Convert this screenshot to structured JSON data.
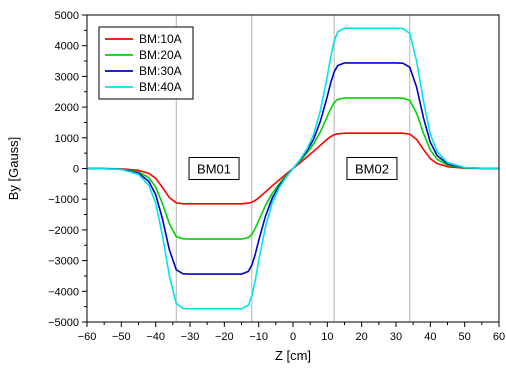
{
  "chart_data": {
    "type": "line",
    "xlabel": "Z [cm]",
    "ylabel": "By [Gauss]",
    "xlim": [
      -60,
      60
    ],
    "ylim": [
      -5000,
      5000
    ],
    "x_ticks": [
      -60,
      -50,
      -40,
      -30,
      -20,
      -10,
      0,
      10,
      20,
      30,
      40,
      50,
      60
    ],
    "y_ticks": [
      -5000,
      -4000,
      -3000,
      -2000,
      -1000,
      0,
      1000,
      2000,
      3000,
      4000,
      5000
    ],
    "x_tick_labels": [
      "−60",
      "−50",
      "−40",
      "−30",
      "−20",
      "−10",
      "0",
      "10",
      "20",
      "30",
      "40",
      "50",
      "60"
    ],
    "y_tick_labels": [
      "−5000",
      "−4000",
      "−3000",
      "−2000",
      "−1000",
      "0",
      "1000",
      "2000",
      "3000",
      "4000",
      "5000"
    ],
    "reference_lines_x": [
      -34,
      -12,
      12,
      34
    ],
    "legend_placement": "top-left",
    "annotations": [
      {
        "text": "BM01",
        "x": -23,
        "y": 0
      },
      {
        "text": "BM02",
        "x": 23,
        "y": 0
      }
    ],
    "x": [
      -60,
      -55,
      -50,
      -45,
      -42,
      -40,
      -38,
      -36,
      -34,
      -32,
      -30,
      -25,
      -20,
      -15,
      -13,
      -12,
      -11,
      -10,
      -8,
      -6,
      -4,
      -2,
      0,
      2,
      4,
      6,
      8,
      10,
      11,
      12,
      13,
      15,
      20,
      25,
      30,
      32,
      34,
      36,
      38,
      40,
      42,
      45,
      50,
      55,
      60
    ],
    "series": [
      {
        "name": "BM:10A",
        "color": "#ff0000",
        "values": [
          0,
          -2,
          -10,
          -60,
          -160,
          -320,
          -620,
          -950,
          -1120,
          -1150,
          -1150,
          -1150,
          -1150,
          -1150,
          -1130,
          -1100,
          -1040,
          -960,
          -760,
          -560,
          -370,
          -180,
          0,
          180,
          370,
          560,
          760,
          960,
          1040,
          1100,
          1130,
          1150,
          1150,
          1150,
          1150,
          1150,
          1120,
          950,
          620,
          320,
          160,
          60,
          10,
          2,
          0
        ]
      },
      {
        "name": "BM:20A",
        "color": "#00d400",
        "values": [
          0,
          -5,
          -20,
          -110,
          -300,
          -600,
          -1150,
          -1800,
          -2220,
          -2290,
          -2300,
          -2300,
          -2300,
          -2300,
          -2250,
          -2150,
          -1950,
          -1700,
          -1200,
          -800,
          -500,
          -230,
          0,
          230,
          500,
          800,
          1200,
          1700,
          1950,
          2150,
          2250,
          2300,
          2300,
          2300,
          2300,
          2290,
          2220,
          1800,
          1150,
          600,
          300,
          110,
          20,
          5,
          0
        ]
      },
      {
        "name": "BM:30A",
        "color": "#0000c8",
        "values": [
          0,
          -5,
          -25,
          -150,
          -420,
          -850,
          -1650,
          -2650,
          -3300,
          -3430,
          -3440,
          -3440,
          -3440,
          -3440,
          -3350,
          -3150,
          -2800,
          -2350,
          -1550,
          -950,
          -560,
          -260,
          0,
          260,
          560,
          950,
          1550,
          2350,
          2800,
          3150,
          3350,
          3440,
          3440,
          3440,
          3440,
          3430,
          3300,
          2650,
          1650,
          850,
          420,
          150,
          25,
          5,
          0
        ]
      },
      {
        "name": "BM:40A",
        "color": "#00e5e5",
        "values": [
          0,
          -8,
          -30,
          -190,
          -550,
          -1120,
          -2200,
          -3500,
          -4400,
          -4560,
          -4570,
          -4570,
          -4570,
          -4570,
          -4450,
          -4150,
          -3650,
          -3000,
          -1900,
          -1100,
          -620,
          -280,
          0,
          280,
          620,
          1100,
          1900,
          3000,
          3650,
          4150,
          4450,
          4570,
          4570,
          4570,
          4570,
          4560,
          4400,
          3500,
          2200,
          1120,
          550,
          190,
          30,
          8,
          0
        ]
      }
    ]
  }
}
